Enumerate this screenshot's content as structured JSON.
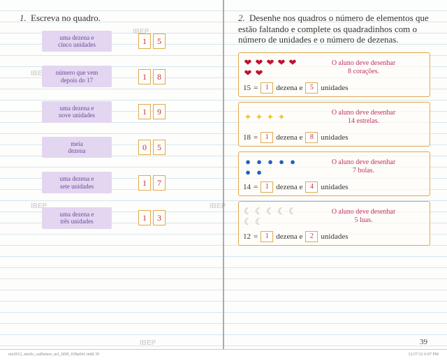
{
  "watermark": "IBEP",
  "page_number": "39",
  "footer_left": "me2012_miolo_cadfuturo_m1_bl09_038a041.indd 39",
  "footer_right": "12/27/12 6:07 PM",
  "left": {
    "title": "Escreva no quadro.",
    "title_num": "1.",
    "rows": [
      {
        "label_l1": "uma dezena e",
        "label_l2": "cinco unidades",
        "d1": "1",
        "d2": "5"
      },
      {
        "label_l1": "número que vem",
        "label_l2": "depois do 17",
        "d1": "1",
        "d2": "8"
      },
      {
        "label_l1": "uma dezena e",
        "label_l2": "nove unidades",
        "d1": "1",
        "d2": "9"
      },
      {
        "label_l1": "meia",
        "label_l2": "dezena",
        "d1": "0",
        "d2": "5"
      },
      {
        "label_l1": "uma dezena e",
        "label_l2": "sete unidades",
        "d1": "1",
        "d2": "7"
      },
      {
        "label_l1": "uma dezena e",
        "label_l2": "três unidades",
        "d1": "1",
        "d2": "3"
      }
    ]
  },
  "right": {
    "title_num": "2.",
    "title": "Desenhe nos quadros o número de elementos que estão faltando e complete os quadradinhos com o número de unidades e o número de dezenas.",
    "word_dezena": "dezena e",
    "word_unidades": "unidades",
    "eq": "=",
    "boxes": [
      {
        "icon": "❤",
        "icon_color": "#c01030",
        "count": 7,
        "note_l1": "O aluno deve desenhar",
        "note_l2": "8 corações.",
        "total": "15",
        "dez": "1",
        "uni": "5"
      },
      {
        "icon": "✦",
        "icon_color": "#e8c83a",
        "count": 4,
        "note_l1": "O aluno deve desenhar",
        "note_l2": "14 estrelas.",
        "total": "18",
        "dez": "1",
        "uni": "8"
      },
      {
        "icon": "●",
        "icon_color": "#2060c0",
        "count": 7,
        "note_l1": "O aluno deve desenhar",
        "note_l2": "7 bolas.",
        "total": "14",
        "dez": "1",
        "uni": "4"
      },
      {
        "icon": "☾",
        "icon_color": "#b0a890",
        "count": 7,
        "note_l1": "O aluno deve desenhar",
        "note_l2": "5 luas.",
        "total": "12",
        "dez": "1",
        "uni": "2"
      }
    ]
  }
}
